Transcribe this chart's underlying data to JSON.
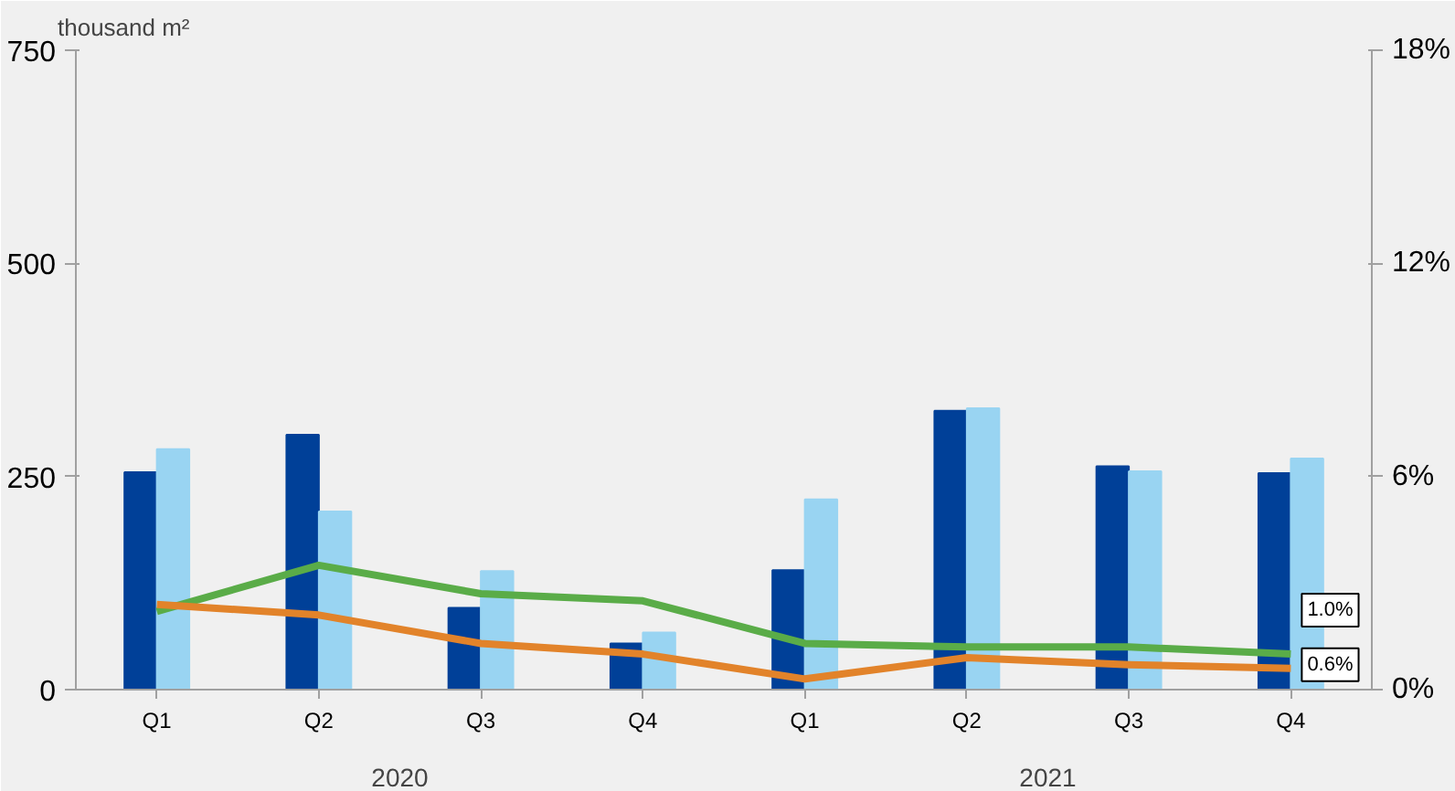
{
  "chart_data": {
    "type": "bar",
    "ylabel": "thousand m²",
    "categories": [
      "Q1",
      "Q2",
      "Q3",
      "Q4",
      "Q1",
      "Q2",
      "Q3",
      "Q4"
    ],
    "series": [
      {
        "color": "#004098",
        "values": [
          255,
          299,
          96,
          54,
          140,
          327,
          262,
          254
        ]
      },
      {
        "color": "#99d4f2",
        "values": [
          282,
          209,
          139,
          67,
          223,
          330,
          256,
          271
        ]
      },
      {
        "type": "line",
        "axis": "y2",
        "color": "#5aac48",
        "values": [
          2.2,
          3.5,
          2.7,
          2.5,
          1.3,
          1.2,
          1.2,
          1.0
        ],
        "value_labels": [
          null,
          null,
          null,
          null,
          null,
          null,
          null,
          "1.0%"
        ]
      },
      {
        "type": "line",
        "axis": "y2",
        "color": "#e2832a",
        "values": [
          2.4,
          2.1,
          1.3,
          1.0,
          0.3,
          0.9,
          0.7,
          0.6
        ],
        "value_labels": [
          null,
          null,
          null,
          null,
          null,
          null,
          null,
          "0.6%"
        ]
      }
    ],
    "ylim": [
      0,
      750
    ],
    "yticks": [
      0,
      250,
      500,
      750
    ],
    "y2lim": [
      0,
      18
    ],
    "y2ticks": [
      {
        "value": 0,
        "label": "0%"
      },
      {
        "value": 6,
        "label": "6%"
      },
      {
        "value": 12,
        "label": "12%"
      },
      {
        "value": 18,
        "label": "18%"
      }
    ],
    "annotations": [
      "2020",
      "2021"
    ],
    "grid": false
  }
}
